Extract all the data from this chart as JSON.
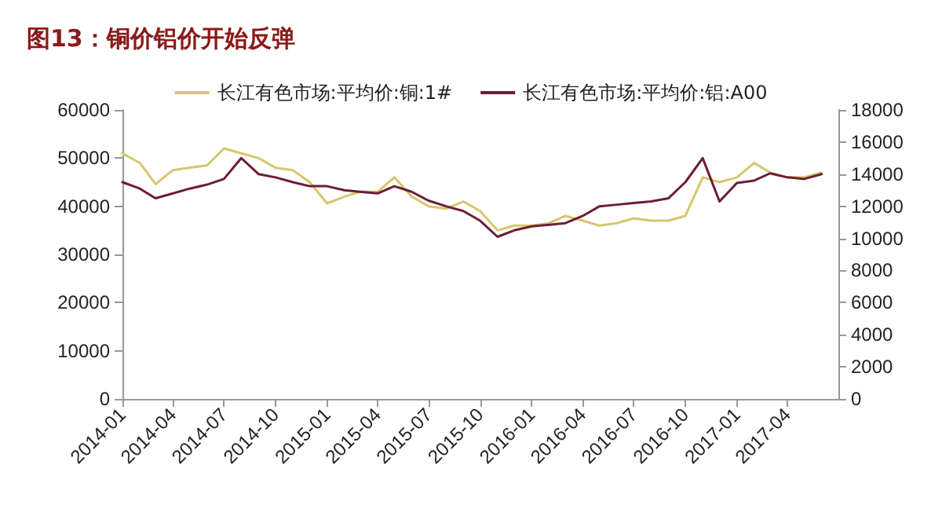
{
  "chart_data": {
    "type": "line",
    "title": "图13：铜价铝价开始反弹",
    "x": [
      "2014-01",
      "2014-02",
      "2014-03",
      "2014-04",
      "2014-05",
      "2014-06",
      "2014-07",
      "2014-08",
      "2014-09",
      "2014-10",
      "2014-11",
      "2014-12",
      "2015-01",
      "2015-02",
      "2015-03",
      "2015-04",
      "2015-05",
      "2015-06",
      "2015-07",
      "2015-08",
      "2015-09",
      "2015-10",
      "2015-11",
      "2015-12",
      "2016-01",
      "2016-02",
      "2016-03",
      "2016-04",
      "2016-05",
      "2016-06",
      "2016-07",
      "2016-08",
      "2016-09",
      "2016-10",
      "2016-11",
      "2016-12",
      "2017-01",
      "2017-02",
      "2017-03",
      "2017-04",
      "2017-05",
      "2017-06"
    ],
    "series": [
      {
        "name": "长江有色市场:平均价:铜:1#",
        "color": "#d8c66e",
        "values": [
          51000,
          49000,
          44600,
          47500,
          48000,
          48500,
          52000,
          51000,
          50000,
          48000,
          47500,
          45000,
          40600,
          42000,
          43000,
          43000,
          46000,
          42000,
          40000,
          39500,
          41000,
          39000,
          35000,
          36000,
          36000,
          36500,
          38000,
          37000,
          36000,
          36500,
          37500,
          37000,
          37000,
          38000,
          46000,
          45000,
          46000,
          49000,
          47000,
          46000,
          46000,
          47000
        ]
      },
      {
        "name": "长江有色市场:平均价:铝:A00",
        "color": "#6b1f33",
        "axis": "y2",
        "values": [
          13500,
          13100,
          12500,
          12800,
          13100,
          13350,
          13700,
          15000,
          14000,
          13800,
          13500,
          13250,
          13250,
          13000,
          12900,
          12800,
          13250,
          12900,
          12350,
          12000,
          11700,
          11100,
          10100,
          10500,
          10750,
          10850,
          10950,
          11400,
          12000,
          12100,
          12200,
          12300,
          12500,
          13500,
          15000,
          12300,
          13450,
          13600,
          14050,
          13800,
          13700,
          14000
        ]
      }
    ],
    "xlim": [
      "2014-01",
      "2017-07"
    ],
    "xticks": [
      "2014-01",
      "2014-04",
      "2014-07",
      "2014-10",
      "2015-01",
      "2015-04",
      "2015-07",
      "2015-10",
      "2016-01",
      "2016-04",
      "2016-07",
      "2016-10",
      "2017-01",
      "2017-04"
    ],
    "ylim": [
      0,
      60000
    ],
    "yticks": [
      0,
      10000,
      20000,
      30000,
      40000,
      50000,
      60000
    ],
    "y2lim": [
      0,
      18000
    ],
    "y2ticks": [
      0,
      2000,
      4000,
      6000,
      8000,
      10000,
      12000,
      14000,
      16000,
      18000
    ],
    "legend": "top",
    "grid": false
  }
}
